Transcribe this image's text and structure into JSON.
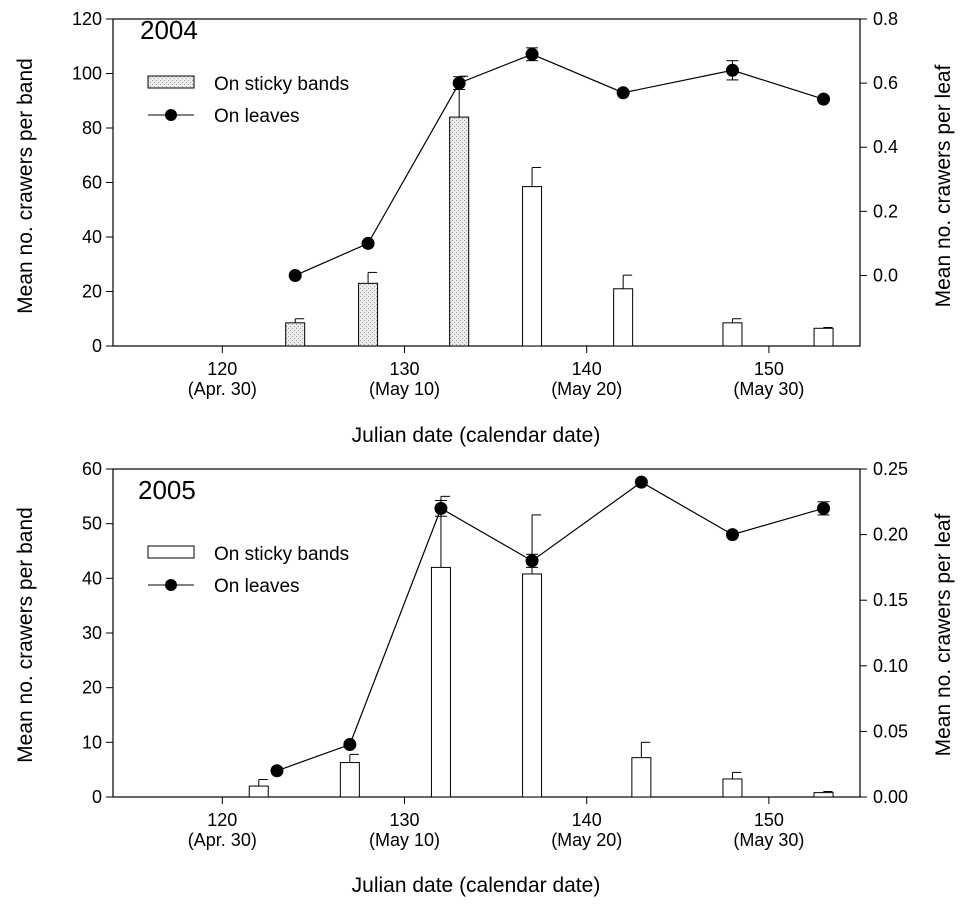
{
  "chart_data": [
    {
      "type": "bar",
      "secondary_type": "line",
      "title": "2004",
      "xlabel": "Julian date (calendar date)",
      "ylabel": "Mean no. crawers per band",
      "y2label": "Mean no. crawers per leaf",
      "xlim": [
        114,
        155
      ],
      "ylim": [
        0,
        120
      ],
      "y2lim": [
        -0.22,
        0.8
      ],
      "x_ticks": [
        {
          "value": 120,
          "label": "120",
          "sublabel": "(Apr. 30)"
        },
        {
          "value": 130,
          "label": "130",
          "sublabel": "(May 10)"
        },
        {
          "value": 140,
          "label": "140",
          "sublabel": "(May 20)"
        },
        {
          "value": 150,
          "label": "150",
          "sublabel": "(May 30)"
        }
      ],
      "y_ticks": [
        0,
        20,
        40,
        60,
        80,
        100,
        120
      ],
      "y2_ticks": [
        "0.0",
        "0.2",
        "0.4",
        "0.6",
        "0.8"
      ],
      "legend": [
        {
          "name": "On sticky bands",
          "kind": "bar"
        },
        {
          "name": "On leaves",
          "kind": "line"
        }
      ],
      "bars": [
        {
          "x": 124,
          "value": 8.5,
          "error": 1.5,
          "shaded": true
        },
        {
          "x": 128,
          "value": 23,
          "error": 4,
          "shaded": true
        },
        {
          "x": 133,
          "value": 84,
          "error": 15,
          "shaded": true
        },
        {
          "x": 137,
          "value": 58.5,
          "error": 7,
          "shaded": false
        },
        {
          "x": 142,
          "value": 21,
          "error": 5,
          "shaded": false
        },
        {
          "x": 148,
          "value": 8.5,
          "error": 1.5,
          "shaded": false
        },
        {
          "x": 153,
          "value": 6.5,
          "error": 0.3,
          "shaded": false
        }
      ],
      "line": [
        {
          "x": 124,
          "value": 0.0,
          "error": 0
        },
        {
          "x": 128,
          "value": 0.1,
          "error": 0
        },
        {
          "x": 133,
          "value": 0.6,
          "error": 0.02
        },
        {
          "x": 137,
          "value": 0.69,
          "error": 0.02
        },
        {
          "x": 142,
          "value": 0.57,
          "error": 0
        },
        {
          "x": 148,
          "value": 0.64,
          "error": 0.03
        },
        {
          "x": 153,
          "value": 0.55,
          "error": 0
        }
      ]
    },
    {
      "type": "bar",
      "secondary_type": "line",
      "title": "2005",
      "xlabel": "Julian date (calendar date)",
      "ylabel": "Mean no. crawers per band",
      "y2label": "Mean no. crawers per leaf",
      "xlim": [
        114,
        155
      ],
      "ylim": [
        0,
        60
      ],
      "y2lim": [
        0,
        0.25
      ],
      "x_ticks": [
        {
          "value": 120,
          "label": "120",
          "sublabel": "(Apr. 30)"
        },
        {
          "value": 130,
          "label": "130",
          "sublabel": "(May 10)"
        },
        {
          "value": 140,
          "label": "140",
          "sublabel": "(May 20)"
        },
        {
          "value": 150,
          "label": "150",
          "sublabel": "(May 30)"
        }
      ],
      "y_ticks": [
        0,
        10,
        20,
        30,
        40,
        50,
        60
      ],
      "y2_ticks": [
        "0.00",
        "0.05",
        "0.10",
        "0.15",
        "0.20",
        "0.25"
      ],
      "legend": [
        {
          "name": "On sticky bands",
          "kind": "bar"
        },
        {
          "name": "On leaves",
          "kind": "line"
        }
      ],
      "bars": [
        {
          "x": 122,
          "value": 2,
          "error": 1.2,
          "shaded": false
        },
        {
          "x": 127,
          "value": 6.3,
          "error": 1.5,
          "shaded": false
        },
        {
          "x": 132,
          "value": 42,
          "error": 13,
          "shaded": false
        },
        {
          "x": 137,
          "value": 40.8,
          "error": 10.8,
          "shaded": false
        },
        {
          "x": 143,
          "value": 7.2,
          "error": 2.8,
          "shaded": false
        },
        {
          "x": 148,
          "value": 3.3,
          "error": 1.2,
          "shaded": false
        },
        {
          "x": 153,
          "value": 0.8,
          "error": 0.2,
          "shaded": false
        }
      ],
      "line": [
        {
          "x": 123,
          "value": 0.02,
          "error": 0
        },
        {
          "x": 127,
          "value": 0.04,
          "error": 0
        },
        {
          "x": 132,
          "value": 0.22,
          "error": 0.006
        },
        {
          "x": 137,
          "value": 0.18,
          "error": 0.005
        },
        {
          "x": 143,
          "value": 0.24,
          "error": 0
        },
        {
          "x": 148,
          "value": 0.2,
          "error": 0
        },
        {
          "x": 153,
          "value": 0.22,
          "error": 0.005
        }
      ]
    }
  ]
}
